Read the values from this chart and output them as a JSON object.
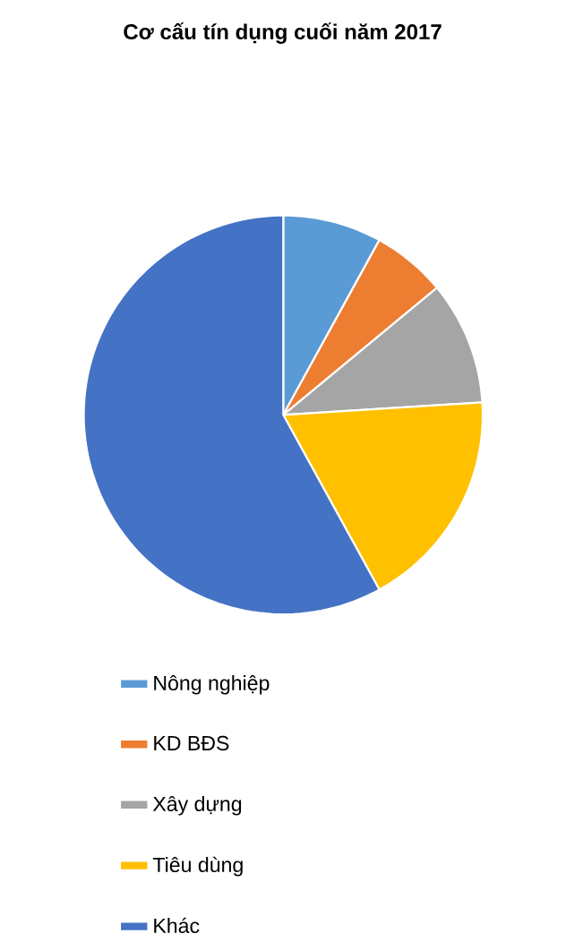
{
  "chart_data": {
    "type": "pie",
    "title": "Cơ cấu tín dụng cuối năm 2017",
    "categories": [
      "Nông nghiệp",
      "KD BĐS",
      "Xây dựng",
      "Tiêu dùng",
      "Khác"
    ],
    "values": [
      8,
      6,
      10,
      18,
      58
    ],
    "colors": [
      "#5b9bd5",
      "#ed7d31",
      "#a5a5a5",
      "#ffc000",
      "#4472c4"
    ],
    "legend": "bottom"
  }
}
